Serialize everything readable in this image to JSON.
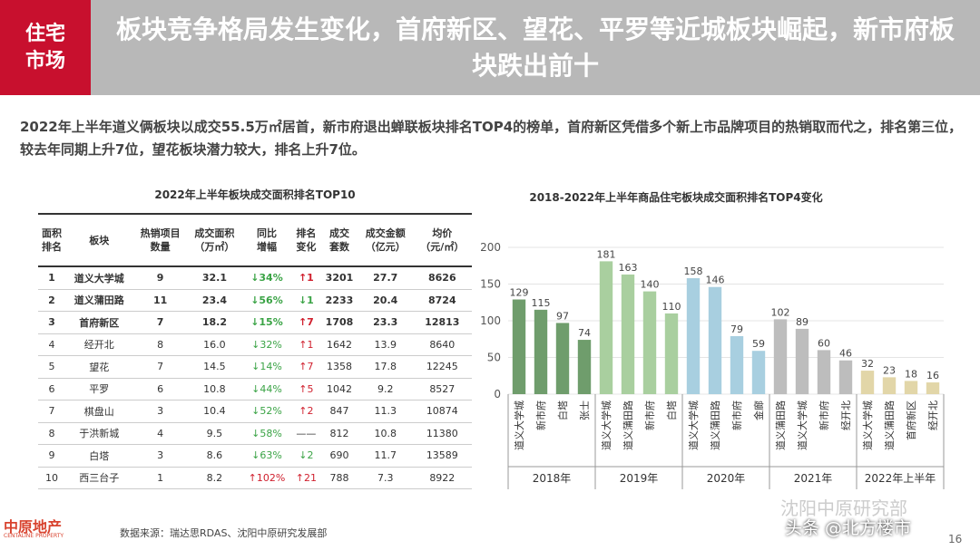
{
  "header": {
    "tag": [
      "住宅",
      "市场"
    ],
    "title": "板块竞争格局发生变化，首府新区、望花、平罗等近城板块崛起，新市府板块跌出前十"
  },
  "summary": "2022年上半年道义俩板块以成交55.5万㎡居首，新市府退出蝉联板块排名TOP4的榜单，首府新区凭借多个新上市品牌项目的热销取而代之，排名第三位，较去年同期上升7位，望花板块潜力较大，排名上升7位。",
  "table": {
    "title": "2022年上半年板块成交面积排名TOP10",
    "headers": [
      "面积\n排名",
      "板块",
      "热销项目\n数量",
      "成交面积\n（万㎡）",
      "同比\n增幅",
      "排名\n变化",
      "成交\n套数",
      "成交金额\n（亿元）",
      "均价\n（元/㎡）"
    ],
    "rows": [
      [
        "1",
        "道义大学城",
        "9",
        "32.1",
        "↓34%",
        "↑1",
        "3201",
        "27.7",
        "8626"
      ],
      [
        "2",
        "道义蒲田路",
        "11",
        "23.4",
        "↓56%",
        "↓1",
        "2233",
        "20.4",
        "8724"
      ],
      [
        "3",
        "首府新区",
        "7",
        "18.2",
        "↓15%",
        "↑7",
        "1708",
        "23.3",
        "12813"
      ],
      [
        "4",
        "经开北",
        "8",
        "16.0",
        "↓32%",
        "↑1",
        "1642",
        "13.9",
        "8640"
      ],
      [
        "5",
        "望花",
        "7",
        "14.5",
        "↓14%",
        "↑7",
        "1358",
        "17.8",
        "12245"
      ],
      [
        "6",
        "平罗",
        "6",
        "10.8",
        "↓44%",
        "↑5",
        "1042",
        "9.2",
        "8527"
      ],
      [
        "7",
        "棋盘山",
        "3",
        "10.4",
        "↓52%",
        "↑2",
        "847",
        "11.3",
        "10874"
      ],
      [
        "8",
        "于洪新城",
        "4",
        "9.5",
        "↓58%",
        "——",
        "812",
        "10.8",
        "11380"
      ],
      [
        "9",
        "白塔",
        "3",
        "8.6",
        "↓63%",
        "↓2",
        "690",
        "11.7",
        "13589"
      ],
      [
        "10",
        "西三台子",
        "1",
        "8.2",
        "↑102%",
        "↑21",
        "788",
        "7.3",
        "8922"
      ]
    ]
  },
  "chart_data": {
    "type": "bar",
    "title": "2018-2022年上半年商品住宅板块成交面积排名TOP4变化",
    "ylim": [
      0,
      200
    ],
    "yticks": [
      0,
      50,
      100,
      150,
      200
    ],
    "grid": true,
    "groups": [
      {
        "name": "2018年",
        "color": "#6f9d6c",
        "categories": [
          "道义大学城",
          "新市府",
          "白塔",
          "张士"
        ],
        "values": [
          129,
          115,
          97,
          74
        ]
      },
      {
        "name": "2019年",
        "color": "#a9cf9f",
        "categories": [
          "道义大学城",
          "道义蒲田路",
          "新市府",
          "白塔"
        ],
        "values": [
          181,
          163,
          140,
          110
        ]
      },
      {
        "name": "2020年",
        "color": "#a8cfe0",
        "categories": [
          "道义大学城",
          "道义蒲田路",
          "新市府",
          "金廊"
        ],
        "values": [
          158,
          146,
          79,
          59
        ]
      },
      {
        "name": "2021年",
        "color": "#bdbdbd",
        "categories": [
          "道义蒲田路",
          "道义大学城",
          "新市府",
          "经开北"
        ],
        "values": [
          102,
          89,
          60,
          46
        ]
      },
      {
        "name": "2022年上半年",
        "color": "#e2d6a8",
        "categories": [
          "道义大学城",
          "道义蒲田路",
          "首府新区",
          "经开北"
        ],
        "values": [
          32,
          23,
          18,
          16
        ]
      }
    ]
  },
  "footer": {
    "source": "数据来源：瑞达思RDAS、沈阳中原研究发展部",
    "logo": "中原地产",
    "logo_en": "CENTALINE PROPERTY",
    "watermark": "沈阳中原研究部",
    "credit": "头条 @北方楼市",
    "page": "16"
  }
}
